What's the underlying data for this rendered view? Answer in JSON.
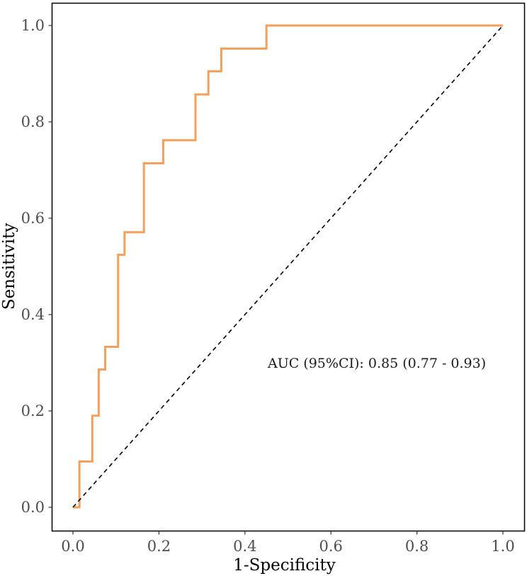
{
  "chart_data": {
    "type": "line",
    "title": "",
    "xlabel": "1-Specificity",
    "ylabel": "Sensitivity",
    "xlim": [
      0.0,
      1.0
    ],
    "ylim": [
      0.0,
      1.0
    ],
    "x_ticks": [
      0.0,
      0.2,
      0.4,
      0.6,
      0.8,
      1.0
    ],
    "y_ticks": [
      0.0,
      0.2,
      0.4,
      0.6,
      0.8,
      1.0
    ],
    "x_tick_labels": [
      "0.0",
      "0.2",
      "0.4",
      "0.6",
      "0.8",
      "1.0"
    ],
    "y_tick_labels": [
      "0.0",
      "0.2",
      "0.4",
      "0.6",
      "0.8",
      "1.0"
    ],
    "grid": false,
    "series": [
      {
        "name": "ROC curve",
        "color": "#f5a05a",
        "x": [
          0.0,
          0.015,
          0.015,
          0.045,
          0.045,
          0.06,
          0.06,
          0.075,
          0.075,
          0.105,
          0.105,
          0.12,
          0.12,
          0.165,
          0.165,
          0.21,
          0.21,
          0.285,
          0.285,
          0.315,
          0.315,
          0.345,
          0.345,
          0.45,
          0.45,
          1.0
        ],
        "y": [
          0.0,
          0.0,
          0.095,
          0.095,
          0.19,
          0.19,
          0.286,
          0.286,
          0.333,
          0.333,
          0.524,
          0.524,
          0.571,
          0.571,
          0.714,
          0.714,
          0.762,
          0.762,
          0.857,
          0.857,
          0.905,
          0.905,
          0.952,
          0.952,
          1.0,
          1.0
        ]
      },
      {
        "name": "Reference line",
        "color": "#000000",
        "style": "dashed",
        "x": [
          0.0,
          1.0
        ],
        "y": [
          0.0,
          1.0
        ]
      }
    ],
    "annotations": [
      {
        "text": "AUC (95%CI): 0.85 (0.77 - 0.93)",
        "x": 0.7,
        "y": 0.3
      }
    ]
  }
}
